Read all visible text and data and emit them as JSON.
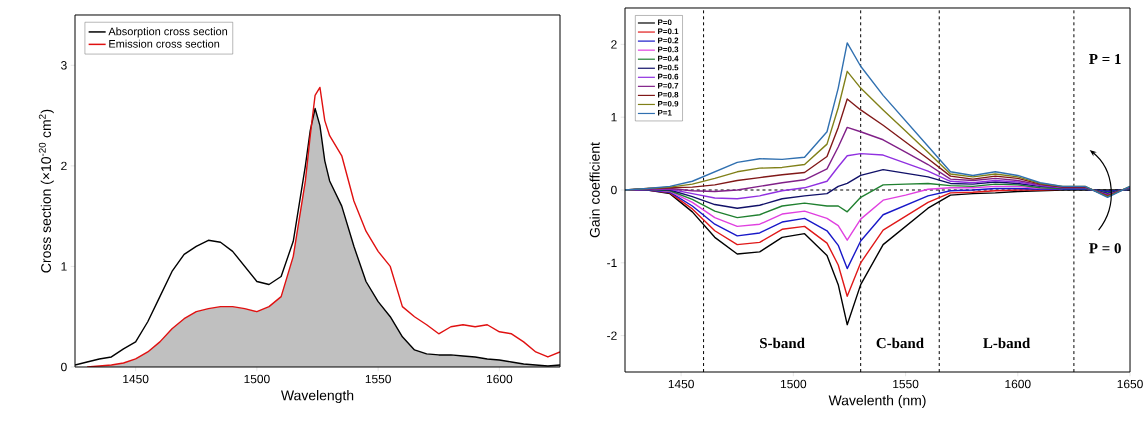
{
  "chart_data": [
    {
      "type": "line",
      "xlabel": "Wavelength",
      "ylabel": "Cross section (×10$^{-20}$ cm$^{2}$)",
      "xlim": [
        1425,
        1625
      ],
      "ylim": [
        0,
        3.5
      ],
      "xticks": [
        1450,
        1500,
        1550,
        1600
      ],
      "yticks": [
        0,
        1,
        2,
        3
      ],
      "legend": "top left",
      "x": [
        1425,
        1430,
        1435,
        1440,
        1445,
        1450,
        1455,
        1460,
        1465,
        1470,
        1475,
        1480,
        1485,
        1490,
        1495,
        1500,
        1505,
        1510,
        1515,
        1520,
        1522,
        1524,
        1526,
        1528,
        1530,
        1535,
        1540,
        1545,
        1550,
        1555,
        1560,
        1565,
        1570,
        1575,
        1580,
        1585,
        1590,
        1595,
        1600,
        1605,
        1610,
        1615,
        1620,
        1625
      ],
      "series": [
        {
          "type": "area",
          "color": "#c0c0c0",
          "values": [
            0,
            0,
            0.01,
            0.02,
            0.04,
            0.08,
            0.15,
            0.25,
            0.38,
            0.48,
            0.55,
            0.58,
            0.6,
            0.6,
            0.58,
            0.55,
            0.6,
            0.7,
            1.1,
            1.85,
            2.3,
            2.57,
            2.4,
            2.05,
            1.85,
            1.6,
            1.2,
            0.85,
            0.65,
            0.5,
            0.3,
            0.17,
            0.13,
            0.12,
            0.12,
            0.11,
            0.1,
            0.08,
            0.07,
            0.05,
            0.03,
            0.02,
            0.01,
            0.02
          ]
        },
        {
          "name": "Absorption cross section",
          "color": "#000000",
          "values": [
            0.02,
            0.05,
            0.08,
            0.1,
            0.18,
            0.25,
            0.45,
            0.7,
            0.95,
            1.12,
            1.2,
            1.26,
            1.24,
            1.15,
            1.0,
            0.85,
            0.82,
            0.9,
            1.25,
            2.0,
            2.35,
            2.57,
            2.4,
            2.05,
            1.85,
            1.6,
            1.2,
            0.85,
            0.65,
            0.5,
            0.3,
            0.17,
            0.13,
            0.12,
            0.12,
            0.11,
            0.1,
            0.08,
            0.07,
            0.05,
            0.03,
            0.02,
            0.01,
            0.02
          ]
        },
        {
          "name": "Emission cross section",
          "color": "#e01010",
          "values": [
            null,
            0,
            0.01,
            0.02,
            0.04,
            0.08,
            0.15,
            0.25,
            0.38,
            0.48,
            0.55,
            0.58,
            0.6,
            0.6,
            0.58,
            0.55,
            0.6,
            0.7,
            1.1,
            1.85,
            2.3,
            2.7,
            2.78,
            2.45,
            2.3,
            2.1,
            1.65,
            1.35,
            1.15,
            1.0,
            0.6,
            0.5,
            0.42,
            0.33,
            0.4,
            0.42,
            0.4,
            0.42,
            0.35,
            0.33,
            0.25,
            0.15,
            0.1,
            0.15
          ]
        }
      ]
    },
    {
      "type": "line",
      "xlabel": "Wavelenth (nm)",
      "ylabel": "Gain coefficient",
      "xlim": [
        1425,
        1650
      ],
      "ylim": [
        -2.5,
        2.5
      ],
      "xticks": [
        1450,
        1500,
        1550,
        1600,
        1650
      ],
      "yticks": [
        -2,
        -1,
        0,
        1,
        2
      ],
      "legend": "top left",
      "ref_lines": [
        {
          "axis": "x",
          "value": 1460,
          "line_style": "dashed"
        },
        {
          "axis": "x",
          "value": 1530,
          "line_style": "dashed"
        },
        {
          "axis": "x",
          "value": 1565,
          "line_style": "dashed"
        },
        {
          "axis": "x",
          "value": 1625,
          "line_style": "dashed"
        },
        {
          "axis": "y",
          "value": 0,
          "line_style": "dashed"
        }
      ],
      "annotations": [
        "S-band",
        "C-band",
        "L-band",
        "P = 1",
        "P = 0"
      ],
      "x": [
        1425,
        1435,
        1445,
        1455,
        1465,
        1475,
        1485,
        1495,
        1505,
        1515,
        1520,
        1524,
        1530,
        1540,
        1550,
        1560,
        1570,
        1580,
        1590,
        1600,
        1610,
        1620,
        1630,
        1640,
        1650
      ],
      "series": [
        {
          "name": "P=0",
          "color": "#000000",
          "values": [
            0,
            0,
            -0.05,
            -0.3,
            -0.65,
            -0.88,
            -0.85,
            -0.65,
            -0.6,
            -0.9,
            -1.3,
            -1.85,
            -1.3,
            -0.75,
            -0.5,
            -0.25,
            -0.07,
            -0.05,
            -0.04,
            -0.02,
            -0.01,
            0,
            0,
            0,
            0
          ]
        },
        {
          "name": "P=0.1",
          "color": "#e01818",
          "values": [
            0,
            0,
            -0.04,
            -0.26,
            -0.56,
            -0.75,
            -0.72,
            -0.54,
            -0.5,
            -0.73,
            -1.03,
            -1.46,
            -1.0,
            -0.55,
            -0.36,
            -0.17,
            -0.04,
            -0.03,
            -0.01,
            0,
            0,
            0.01,
            null,
            null,
            null
          ]
        },
        {
          "name": "P=0.2",
          "color": "#1818c8",
          "values": [
            0,
            0,
            -0.03,
            -0.22,
            -0.47,
            -0.63,
            -0.59,
            -0.44,
            -0.39,
            -0.56,
            -0.76,
            -1.08,
            -0.7,
            -0.34,
            -0.21,
            -0.08,
            -0.01,
            0,
            0.02,
            0.02,
            0.01,
            0.01,
            0.01,
            -0.02,
            0.01
          ]
        },
        {
          "name": "P=0.3",
          "color": "#e040e0",
          "values": [
            0,
            0.01,
            -0.02,
            -0.17,
            -0.38,
            -0.5,
            -0.47,
            -0.33,
            -0.29,
            -0.39,
            -0.49,
            -0.69,
            -0.4,
            -0.14,
            -0.07,
            0.01,
            0.03,
            0.03,
            0.05,
            0.05,
            0.02,
            0.02,
            null,
            null,
            null
          ]
        },
        {
          "name": "P=0.4",
          "color": "#208030",
          "values": [
            0,
            0.01,
            -0.01,
            -0.13,
            -0.29,
            -0.38,
            -0.34,
            -0.22,
            -0.18,
            -0.22,
            -0.22,
            -0.3,
            -0.1,
            0.07,
            0.08,
            0.09,
            0.06,
            0.05,
            0.08,
            0.07,
            0.03,
            0.02,
            0.02,
            -0.04,
            0.02
          ]
        },
        {
          "name": "P=0.5",
          "color": "#101068",
          "values": [
            0,
            0.01,
            0,
            -0.09,
            -0.2,
            -0.25,
            -0.21,
            -0.12,
            -0.08,
            -0.05,
            0.05,
            0.09,
            0.2,
            0.28,
            0.23,
            0.18,
            0.09,
            0.08,
            0.11,
            0.09,
            0.05,
            0.03,
            0.03,
            -0.05,
            0.03
          ]
        },
        {
          "name": "P=0.6",
          "color": "#9030e0",
          "values": [
            0,
            0.01,
            0.01,
            -0.05,
            -0.11,
            -0.12,
            -0.08,
            -0.01,
            0.03,
            0.12,
            0.32,
            0.47,
            0.5,
            0.48,
            0.37,
            0.26,
            0.12,
            0.1,
            0.13,
            0.11,
            0.06,
            0.03,
            0.03,
            -0.06,
            0.03
          ]
        },
        {
          "name": "P=0.7",
          "color": "#802088",
          "values": [
            0,
            0.01,
            0.02,
            -0.01,
            -0.02,
            0,
            0.05,
            0.1,
            0.14,
            0.29,
            0.59,
            0.86,
            0.8,
            0.69,
            0.52,
            0.35,
            0.15,
            0.13,
            0.16,
            0.13,
            0.07,
            0.04,
            0.04,
            -0.07,
            0.04
          ]
        },
        {
          "name": "P=0.8",
          "color": "#801818",
          "values": [
            0,
            0.02,
            0.03,
            0.04,
            0.07,
            0.13,
            0.17,
            0.21,
            0.24,
            0.46,
            0.86,
            1.25,
            1.1,
            0.89,
            0.66,
            0.43,
            0.19,
            0.15,
            0.19,
            0.16,
            0.08,
            0.04,
            0.04,
            -0.08,
            0.04
          ]
        },
        {
          "name": "P=0.9",
          "color": "#808018",
          "values": [
            0,
            0.02,
            0.04,
            0.08,
            0.16,
            0.25,
            0.3,
            0.31,
            0.35,
            0.63,
            1.13,
            1.63,
            1.4,
            1.1,
            0.81,
            0.52,
            0.22,
            0.18,
            0.22,
            0.18,
            0.09,
            0.05,
            0.05,
            -0.09,
            0.05
          ]
        },
        {
          "name": "P=1",
          "color": "#3070b0",
          "values": [
            0,
            0.02,
            0.05,
            0.12,
            0.25,
            0.38,
            0.43,
            0.42,
            0.45,
            0.8,
            1.4,
            2.02,
            1.7,
            1.3,
            0.95,
            0.6,
            0.25,
            0.2,
            0.25,
            0.2,
            0.1,
            0.05,
            0.05,
            -0.1,
            0.05
          ]
        }
      ]
    }
  ]
}
